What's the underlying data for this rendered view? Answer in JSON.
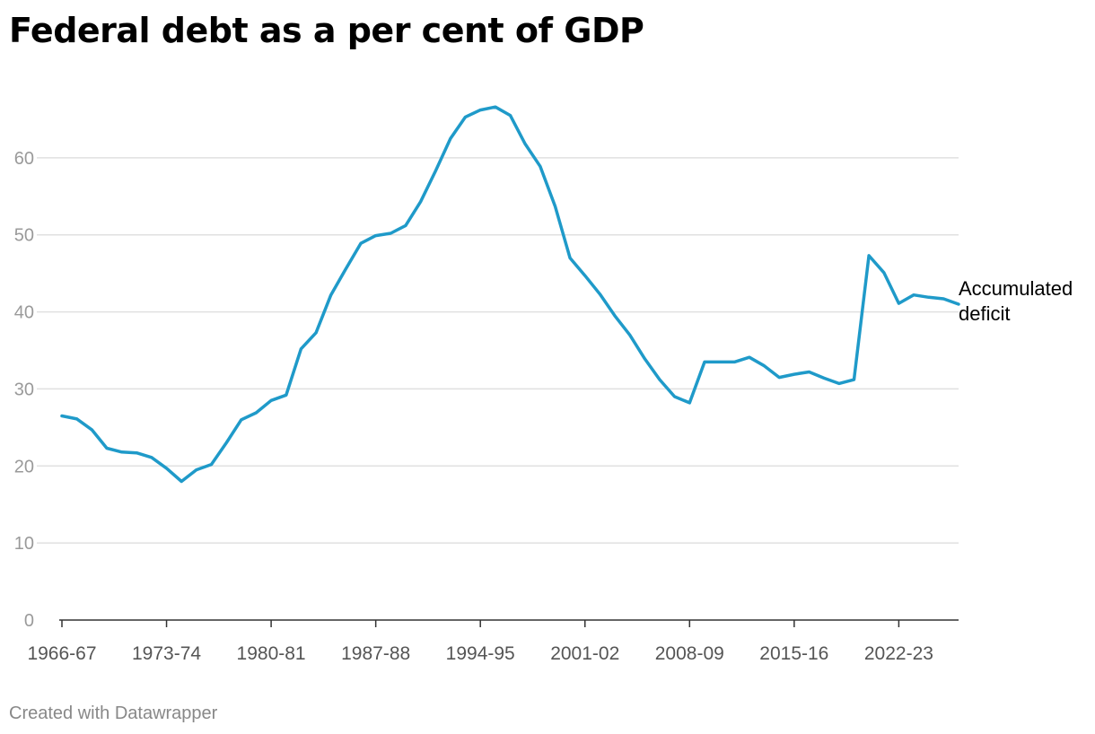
{
  "title": "Federal debt as a per cent of GDP",
  "credit": "Created with Datawrapper",
  "colors": {
    "line": "#1f9ac9",
    "grid": "#e0e0e0",
    "axis": "#333333",
    "tick_text": "#9a9a9a",
    "label_text": "#000000"
  },
  "chart_data": {
    "type": "line",
    "title": "Federal debt as a per cent of GDP",
    "xlabel": "",
    "ylabel": "",
    "ylim": [
      0,
      70
    ],
    "y_ticks": [
      0,
      10,
      20,
      30,
      40,
      50,
      60
    ],
    "grid": true,
    "x_tick_labels": [
      "1966-67",
      "1973-74",
      "1980-81",
      "1987-88",
      "1994-95",
      "2001-02",
      "2008-09",
      "2015-16",
      "2022-23"
    ],
    "series": [
      {
        "name": "Accumulated deficit",
        "label": [
          "Accumulated",
          "deficit"
        ],
        "x": [
          "1966-67",
          "1967-68",
          "1968-69",
          "1969-70",
          "1970-71",
          "1971-72",
          "1972-73",
          "1973-74",
          "1974-75",
          "1975-76",
          "1976-77",
          "1977-78",
          "1978-79",
          "1979-80",
          "1980-81",
          "1981-82",
          "1982-83",
          "1983-84",
          "1984-85",
          "1985-86",
          "1986-87",
          "1987-88",
          "1988-89",
          "1989-90",
          "1990-91",
          "1991-92",
          "1992-93",
          "1993-94",
          "1994-95",
          "1995-96",
          "1996-97",
          "1997-98",
          "1998-99",
          "1999-00",
          "2000-01",
          "2001-02",
          "2002-03",
          "2003-04",
          "2004-05",
          "2005-06",
          "2006-07",
          "2007-08",
          "2008-09",
          "2009-10",
          "2010-11",
          "2011-12",
          "2012-13",
          "2013-14",
          "2014-15",
          "2015-16",
          "2016-17",
          "2017-18",
          "2018-19",
          "2019-20",
          "2020-21",
          "2021-22",
          "2022-23",
          "2023-24",
          "2024-25",
          "2025-26",
          "2026-27"
        ],
        "values": [
          26.5,
          26.1,
          24.7,
          22.3,
          21.8,
          21.7,
          21.1,
          19.7,
          18.0,
          19.5,
          20.2,
          23.0,
          26.0,
          26.9,
          28.5,
          29.2,
          35.2,
          37.3,
          42.2,
          45.6,
          48.9,
          49.9,
          50.2,
          51.2,
          54.3,
          58.3,
          62.5,
          65.3,
          66.2,
          66.6,
          65.5,
          61.8,
          58.9,
          53.7,
          47.0,
          44.7,
          42.3,
          39.5,
          37.0,
          33.9,
          31.2,
          29.0,
          28.2,
          33.5,
          33.5,
          33.5,
          34.1,
          33.0,
          31.5,
          31.9,
          32.2,
          31.4,
          30.7,
          31.2,
          47.3,
          45.1,
          41.1,
          42.2,
          41.9,
          41.7,
          41.0
        ]
      }
    ]
  }
}
